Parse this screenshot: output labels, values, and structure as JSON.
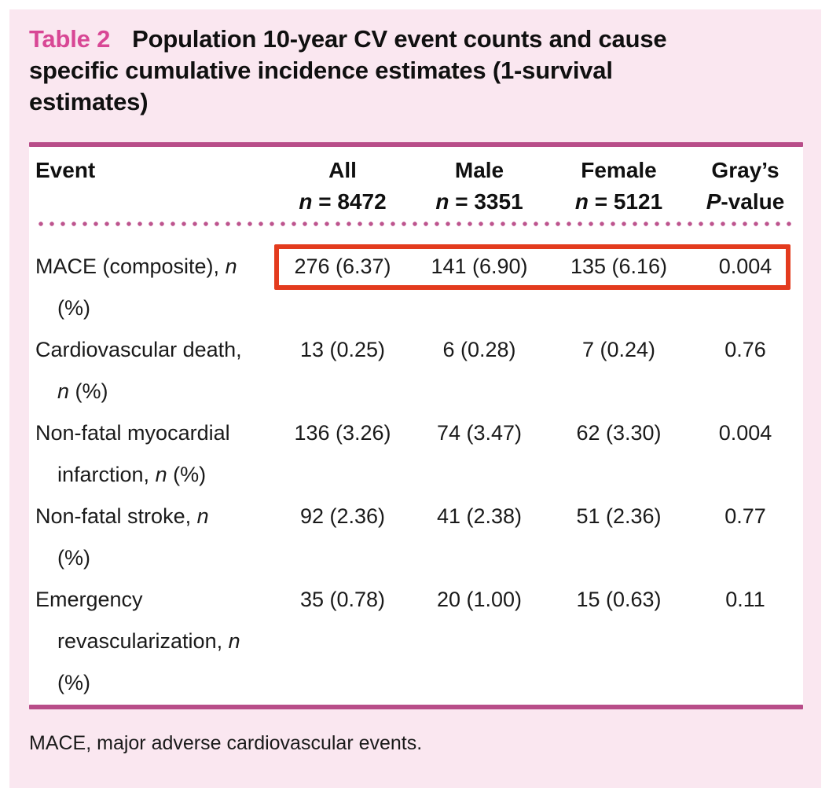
{
  "title": {
    "label": "Table 2",
    "text": "Population 10-year CV event counts and cause\nspecific cumulative incidence estimates (1-survival\nestimates)"
  },
  "header": {
    "event": "Event",
    "columns": [
      "All\nn = 8472",
      "Male\nn = 3351",
      "Female\nn = 5121",
      "Gray’s\nP-value"
    ]
  },
  "rows": [
    {
      "event": "MACE (composite), n\n(%)",
      "all": "276 (6.37)",
      "male": "141 (6.90)",
      "female": "135 (6.16)",
      "p": "0.004",
      "highlighted": true
    },
    {
      "event": "Cardiovascular death,\nn (%)",
      "all": "13 (0.25)",
      "male": "6 (0.28)",
      "female": "7 (0.24)",
      "p": "0.76",
      "highlighted": false
    },
    {
      "event": "Non-fatal myocardial\ninfarction, n (%)",
      "all": "136 (3.26)",
      "male": "74 (3.47)",
      "female": "62 (3.30)",
      "p": "0.004",
      "highlighted": false
    },
    {
      "event": "Non-fatal stroke, n\n(%)",
      "all": "92 (2.36)",
      "male": "41 (2.38)",
      "female": "51 (2.36)",
      "p": "0.77",
      "highlighted": false
    },
    {
      "event": "Emergency\nrevascularization, n\n(%)",
      "all": "35 (0.78)",
      "male": "20 (1.00)",
      "female": "15 (0.63)",
      "p": "0.11",
      "highlighted": false
    }
  ],
  "footnote": "MACE, major adverse cardiovascular events.",
  "colors": {
    "panel_background": "#fae7f0",
    "table_label_pink": "#d84795",
    "rule_magenta": "#b84d89",
    "dotted_divider": "#bd548e",
    "highlight_box_red": "#e33b1e",
    "text": "#1a1a1a"
  }
}
